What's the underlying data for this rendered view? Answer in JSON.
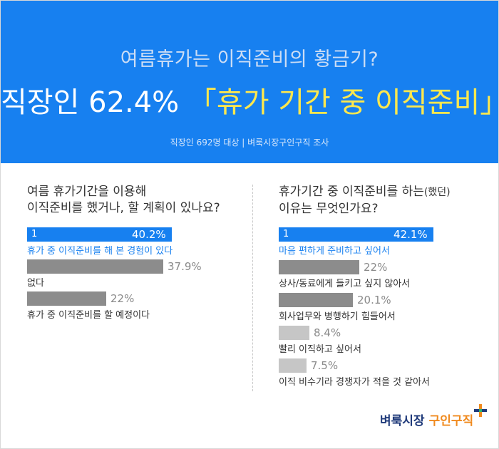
{
  "header": {
    "subtitle": "여름휴가는 이직준비의 황금기?",
    "headline_white": "직장인 62.4% ",
    "headline_yellow": "「휴가 기간 중 이직준비」",
    "source": "직장인 692명 대상  |  벼룩시장구인구직 조사"
  },
  "left_question": {
    "line1": "여름 휴가기간을 이용해",
    "line2": "이직준비를 했거나, 할 계획이 있나요?"
  },
  "right_question": {
    "line1_main": "휴가기간 중 이직준비를 하는",
    "line1_sub": "(했던)",
    "line2": "이유는 무엇인가요?"
  },
  "chart_data": [
    {
      "type": "bar",
      "categories": [
        "휴가 중 이직준비를 해 본 경험이 있다",
        "없다",
        "휴가 중 이직준비를 할 예정이다"
      ],
      "values": [
        40.2,
        37.9,
        22
      ],
      "value_labels": [
        "40.2%",
        "37.9%",
        "22%"
      ],
      "rank_label": "1위",
      "unit": "%"
    },
    {
      "type": "bar",
      "categories": [
        "마음 편하게 준비하고 싶어서",
        "상사/동료에게 들키고 싶지 않아서",
        "회사업무와 병행하기 힘들어서",
        "빨리 이직하고 싶어서",
        "이직 비수기라 경쟁자가 적을 것 같아서"
      ],
      "values": [
        42.1,
        22,
        20.1,
        8.4,
        7.5
      ],
      "value_labels": [
        "42.1%",
        "22%",
        "20.1%",
        "8.4%",
        "7.5%"
      ],
      "rank_label": "1위",
      "unit": "%"
    }
  ],
  "logo": {
    "part1": "벼룩시장",
    "part2": "구인구직"
  },
  "colors": {
    "header_bg": "#1780f0",
    "accent_yellow": "#ffe84d",
    "bar_first": "#1780f0",
    "bar_dark": "#8c8c8c",
    "bar_light": "#c6c6c6",
    "logo_navy": "#1f3a7a",
    "logo_orange": "#f08a1e"
  }
}
